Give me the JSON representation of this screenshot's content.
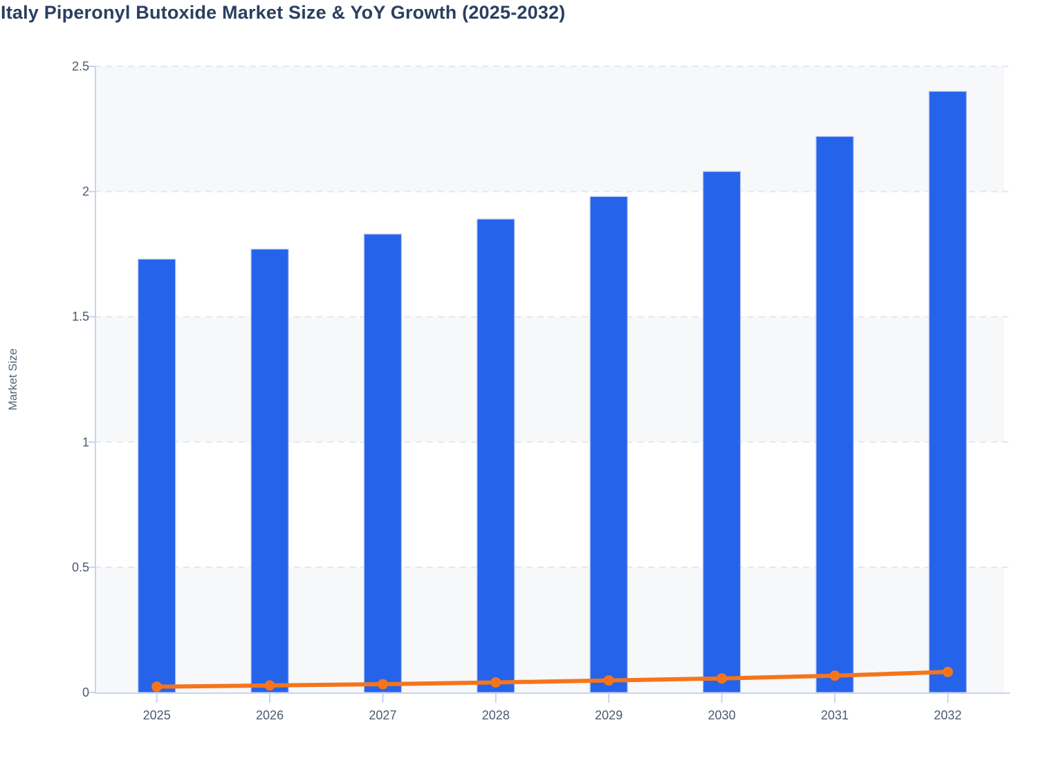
{
  "title": "Italy Piperonyl Butoxide Market Size & YoY Growth (2025-2032)",
  "colors": {
    "title_text": "#2a3f5f",
    "tick_text": "#4e5870",
    "axis_title_text": "#56617a",
    "bar_fill": "#2563eb",
    "bar_stroke": "#b3c3f0",
    "line": "#f5751b",
    "axis_line": "#c9d3ee",
    "gridline": "#e5e7eb",
    "band_fill": "#f6f8fa",
    "background": "#ffffff"
  },
  "chart_data": {
    "type": "bar",
    "subtype": "bar+line combo",
    "title": "Italy Piperonyl Butoxide Market Size & YoY Growth (2025-2032)",
    "xlabel": "",
    "ylabel": "Market Size",
    "categories": [
      "2025",
      "2026",
      "2027",
      "2028",
      "2029",
      "2030",
      "2031",
      "2032"
    ],
    "series": [
      {
        "name": "Market Size",
        "type": "bar",
        "values": [
          1.73,
          1.77,
          1.83,
          1.89,
          1.98,
          2.08,
          2.22,
          2.4
        ]
      },
      {
        "name": "YoY Growth",
        "type": "line",
        "values": [
          0.023,
          0.028,
          0.033,
          0.04,
          0.048,
          0.056,
          0.067,
          0.082
        ]
      }
    ],
    "ylim": [
      0,
      2.5
    ],
    "ytick_step": 0.5,
    "ytick_labels": [
      "0",
      "0.5",
      "1",
      "1.5",
      "2",
      "2.5"
    ],
    "grid": "dashed horizontal at every 0.5",
    "background_bands": "alternating gray/white every 0.5 starting gray at top",
    "legend": "none"
  }
}
